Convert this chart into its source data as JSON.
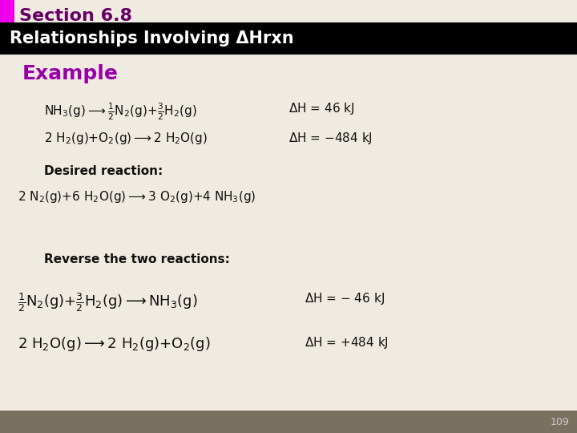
{
  "title_section": "Section 6.8",
  "title_bar": "Relationships Involving ΔHrxn",
  "example_label": "Example",
  "bg_color": "#f0ebe0",
  "title_bar_bg": "#000000",
  "section_strip_bg": "#ee00ee",
  "title_bar_color": "#ffffff",
  "example_color": "#9900aa",
  "text_color": "#111111",
  "page_number": "109",
  "footer_bg": "#7a7060",
  "footer_text_color": "#cccccc",
  "section_title_color": "#660066"
}
